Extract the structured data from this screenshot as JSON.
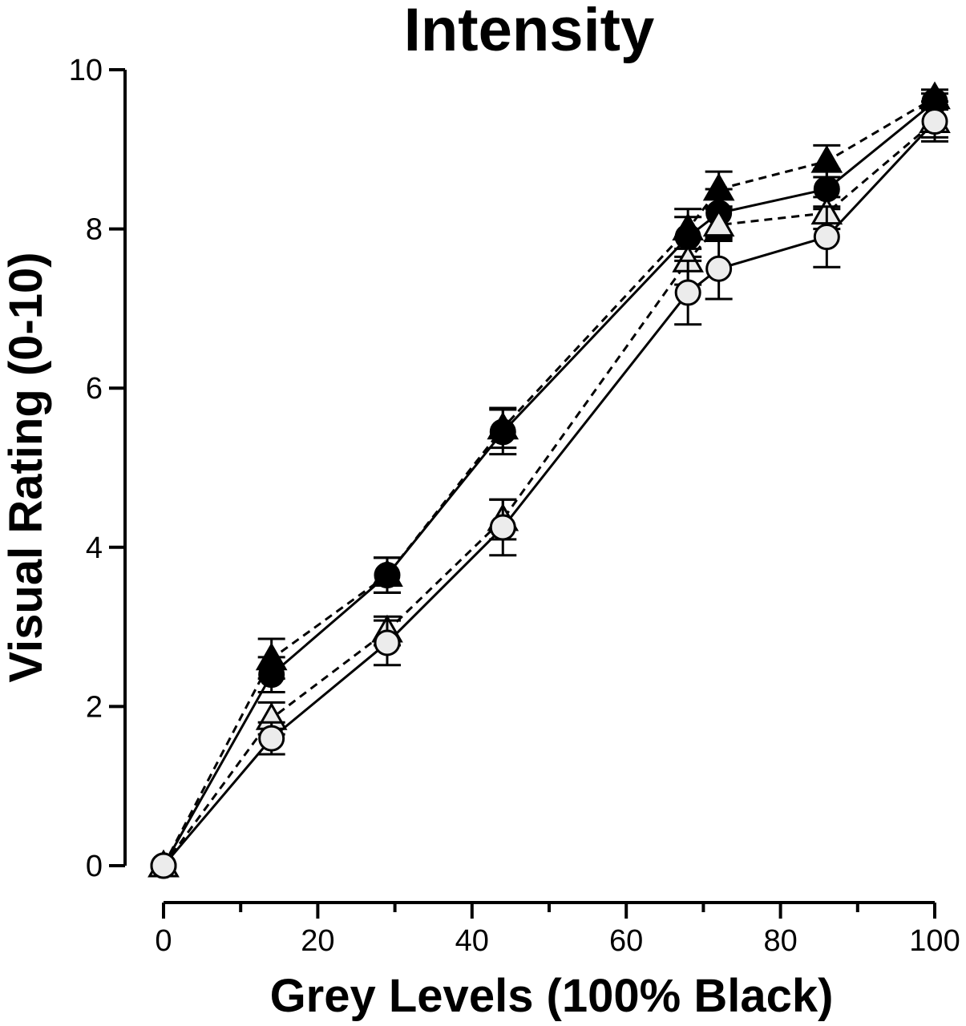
{
  "chart_data": {
    "type": "line",
    "title": "Intensity",
    "xlabel": "Grey Levels (100% Black)",
    "ylabel": "Visual Rating (0-10)",
    "xlim": [
      0,
      100
    ],
    "ylim": [
      0,
      10
    ],
    "x_ticks": [
      "0",
      "20",
      "40",
      "60",
      "80",
      "100"
    ],
    "y_ticks": [
      "0",
      "2",
      "4",
      "6",
      "8",
      "10"
    ],
    "x": [
      0,
      14,
      29,
      44,
      68,
      72,
      86,
      100
    ],
    "grid": false,
    "legend": "none",
    "series": [
      {
        "marker": "filled-triangle",
        "line": "dashed",
        "color": "#000000",
        "values": [
          0,
          2.6,
          3.65,
          5.5,
          8.0,
          8.5,
          8.85,
          9.65
        ],
        "errors": [
          0,
          0.25,
          0.22,
          0.25,
          0.25,
          0.22,
          0.2,
          0.1
        ]
      },
      {
        "marker": "filled-circle",
        "line": "solid",
        "color": "#000000",
        "values": [
          0,
          2.4,
          3.65,
          5.45,
          7.9,
          8.2,
          8.5,
          9.6
        ],
        "errors": [
          0,
          0.22,
          0.22,
          0.28,
          0.25,
          0.3,
          0.25,
          0.1
        ]
      },
      {
        "marker": "open-triangle",
        "line": "dashed",
        "color": "#000000",
        "values": [
          0,
          1.85,
          2.95,
          4.35,
          7.6,
          8.05,
          8.2,
          9.35
        ],
        "errors": [
          0,
          0.2,
          0.18,
          0.25,
          0.3,
          0.2,
          0.2,
          0.2
        ]
      },
      {
        "marker": "open-circle",
        "line": "solid",
        "color": "#000000",
        "values": [
          0,
          1.6,
          2.8,
          4.25,
          7.2,
          7.5,
          7.9,
          9.35
        ],
        "errors": [
          0,
          0.2,
          0.28,
          0.35,
          0.4,
          0.38,
          0.38,
          0.25
        ]
      }
    ]
  }
}
